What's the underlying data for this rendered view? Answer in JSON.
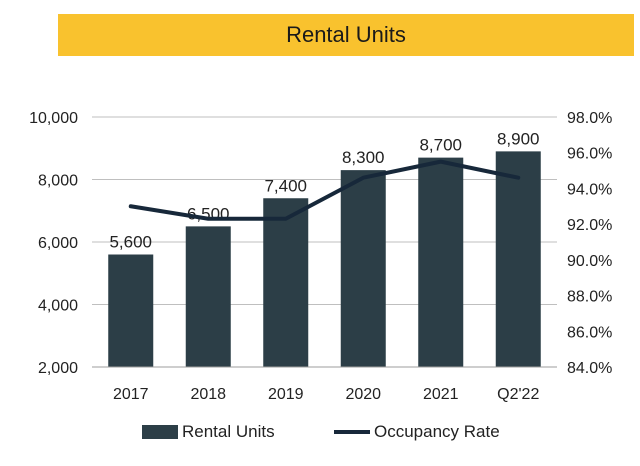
{
  "header": {
    "title": "Rental Units"
  },
  "colors": {
    "title_bar": "#F9C22E",
    "bar": "#2C3E47",
    "line": "#17283A",
    "gridline": "#BFBFBF"
  },
  "chart_data": {
    "type": "bar+line",
    "title": "Rental Units",
    "categories": [
      "2017",
      "2018",
      "2019",
      "2020",
      "2021",
      "Q2'22"
    ],
    "series": [
      {
        "name": "Rental Units",
        "type": "bar",
        "axis": "left",
        "values": [
          5600,
          6500,
          7400,
          8300,
          8700,
          8900
        ],
        "labels": [
          "5,600",
          "6,500",
          "7,400",
          "8,300",
          "8,700",
          "8,900"
        ]
      },
      {
        "name": "Occupancy Rate",
        "type": "line",
        "axis": "right",
        "values": [
          93.0,
          92.3,
          92.3,
          94.6,
          95.5,
          94.6
        ]
      }
    ],
    "y_left": {
      "ylim": [
        2000,
        10000
      ],
      "ticks": [
        2000,
        4000,
        6000,
        8000,
        10000
      ],
      "tick_labels": [
        "2,000",
        "4,000",
        "6,000",
        "8,000",
        "10,000"
      ]
    },
    "y_right": {
      "ylim": [
        84,
        98
      ],
      "ticks": [
        84,
        86,
        88,
        90,
        92,
        94,
        96,
        98
      ],
      "tick_labels": [
        "84.0%",
        "86.0%",
        "88.0%",
        "90.0%",
        "92.0%",
        "94.0%",
        "96.0%",
        "98.0%"
      ]
    },
    "grid": true,
    "legend": "bottom"
  }
}
